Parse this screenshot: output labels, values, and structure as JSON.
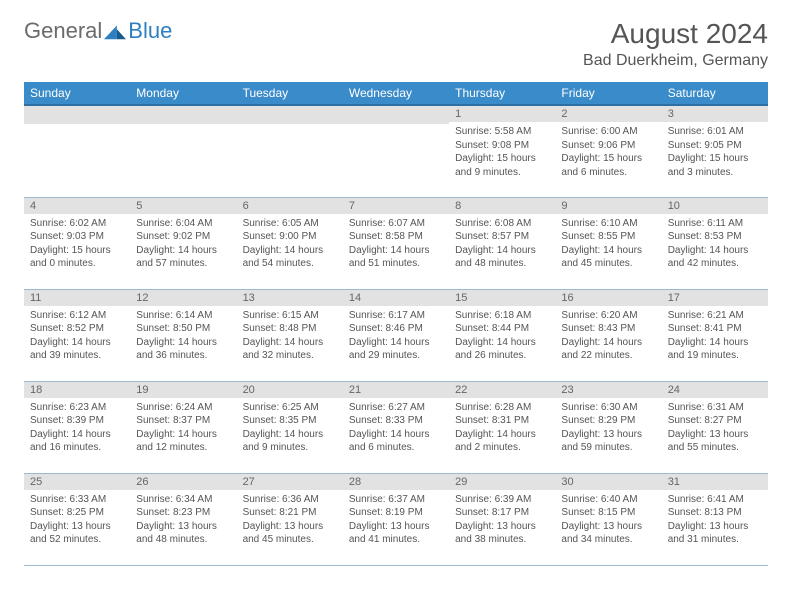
{
  "logo": {
    "general": "General",
    "blue": "Blue"
  },
  "header": {
    "month_title": "August 2024",
    "location": "Bad Duerkheim, Germany"
  },
  "colors": {
    "header_bg": "#3a8bc9",
    "header_border": "#2d6fa3",
    "daynum_bg": "#e2e2e2",
    "cell_border": "#9cb9d2",
    "logo_gray": "#6b6b6b",
    "logo_blue": "#2d7fc1"
  },
  "weekdays": [
    "Sunday",
    "Monday",
    "Tuesday",
    "Wednesday",
    "Thursday",
    "Friday",
    "Saturday"
  ],
  "weeks": [
    [
      null,
      null,
      null,
      null,
      {
        "n": "1",
        "sunrise": "Sunrise: 5:58 AM",
        "sunset": "Sunset: 9:08 PM",
        "daylight1": "Daylight: 15 hours",
        "daylight2": "and 9 minutes."
      },
      {
        "n": "2",
        "sunrise": "Sunrise: 6:00 AM",
        "sunset": "Sunset: 9:06 PM",
        "daylight1": "Daylight: 15 hours",
        "daylight2": "and 6 minutes."
      },
      {
        "n": "3",
        "sunrise": "Sunrise: 6:01 AM",
        "sunset": "Sunset: 9:05 PM",
        "daylight1": "Daylight: 15 hours",
        "daylight2": "and 3 minutes."
      }
    ],
    [
      {
        "n": "4",
        "sunrise": "Sunrise: 6:02 AM",
        "sunset": "Sunset: 9:03 PM",
        "daylight1": "Daylight: 15 hours",
        "daylight2": "and 0 minutes."
      },
      {
        "n": "5",
        "sunrise": "Sunrise: 6:04 AM",
        "sunset": "Sunset: 9:02 PM",
        "daylight1": "Daylight: 14 hours",
        "daylight2": "and 57 minutes."
      },
      {
        "n": "6",
        "sunrise": "Sunrise: 6:05 AM",
        "sunset": "Sunset: 9:00 PM",
        "daylight1": "Daylight: 14 hours",
        "daylight2": "and 54 minutes."
      },
      {
        "n": "7",
        "sunrise": "Sunrise: 6:07 AM",
        "sunset": "Sunset: 8:58 PM",
        "daylight1": "Daylight: 14 hours",
        "daylight2": "and 51 minutes."
      },
      {
        "n": "8",
        "sunrise": "Sunrise: 6:08 AM",
        "sunset": "Sunset: 8:57 PM",
        "daylight1": "Daylight: 14 hours",
        "daylight2": "and 48 minutes."
      },
      {
        "n": "9",
        "sunrise": "Sunrise: 6:10 AM",
        "sunset": "Sunset: 8:55 PM",
        "daylight1": "Daylight: 14 hours",
        "daylight2": "and 45 minutes."
      },
      {
        "n": "10",
        "sunrise": "Sunrise: 6:11 AM",
        "sunset": "Sunset: 8:53 PM",
        "daylight1": "Daylight: 14 hours",
        "daylight2": "and 42 minutes."
      }
    ],
    [
      {
        "n": "11",
        "sunrise": "Sunrise: 6:12 AM",
        "sunset": "Sunset: 8:52 PM",
        "daylight1": "Daylight: 14 hours",
        "daylight2": "and 39 minutes."
      },
      {
        "n": "12",
        "sunrise": "Sunrise: 6:14 AM",
        "sunset": "Sunset: 8:50 PM",
        "daylight1": "Daylight: 14 hours",
        "daylight2": "and 36 minutes."
      },
      {
        "n": "13",
        "sunrise": "Sunrise: 6:15 AM",
        "sunset": "Sunset: 8:48 PM",
        "daylight1": "Daylight: 14 hours",
        "daylight2": "and 32 minutes."
      },
      {
        "n": "14",
        "sunrise": "Sunrise: 6:17 AM",
        "sunset": "Sunset: 8:46 PM",
        "daylight1": "Daylight: 14 hours",
        "daylight2": "and 29 minutes."
      },
      {
        "n": "15",
        "sunrise": "Sunrise: 6:18 AM",
        "sunset": "Sunset: 8:44 PM",
        "daylight1": "Daylight: 14 hours",
        "daylight2": "and 26 minutes."
      },
      {
        "n": "16",
        "sunrise": "Sunrise: 6:20 AM",
        "sunset": "Sunset: 8:43 PM",
        "daylight1": "Daylight: 14 hours",
        "daylight2": "and 22 minutes."
      },
      {
        "n": "17",
        "sunrise": "Sunrise: 6:21 AM",
        "sunset": "Sunset: 8:41 PM",
        "daylight1": "Daylight: 14 hours",
        "daylight2": "and 19 minutes."
      }
    ],
    [
      {
        "n": "18",
        "sunrise": "Sunrise: 6:23 AM",
        "sunset": "Sunset: 8:39 PM",
        "daylight1": "Daylight: 14 hours",
        "daylight2": "and 16 minutes."
      },
      {
        "n": "19",
        "sunrise": "Sunrise: 6:24 AM",
        "sunset": "Sunset: 8:37 PM",
        "daylight1": "Daylight: 14 hours",
        "daylight2": "and 12 minutes."
      },
      {
        "n": "20",
        "sunrise": "Sunrise: 6:25 AM",
        "sunset": "Sunset: 8:35 PM",
        "daylight1": "Daylight: 14 hours",
        "daylight2": "and 9 minutes."
      },
      {
        "n": "21",
        "sunrise": "Sunrise: 6:27 AM",
        "sunset": "Sunset: 8:33 PM",
        "daylight1": "Daylight: 14 hours",
        "daylight2": "and 6 minutes."
      },
      {
        "n": "22",
        "sunrise": "Sunrise: 6:28 AM",
        "sunset": "Sunset: 8:31 PM",
        "daylight1": "Daylight: 14 hours",
        "daylight2": "and 2 minutes."
      },
      {
        "n": "23",
        "sunrise": "Sunrise: 6:30 AM",
        "sunset": "Sunset: 8:29 PM",
        "daylight1": "Daylight: 13 hours",
        "daylight2": "and 59 minutes."
      },
      {
        "n": "24",
        "sunrise": "Sunrise: 6:31 AM",
        "sunset": "Sunset: 8:27 PM",
        "daylight1": "Daylight: 13 hours",
        "daylight2": "and 55 minutes."
      }
    ],
    [
      {
        "n": "25",
        "sunrise": "Sunrise: 6:33 AM",
        "sunset": "Sunset: 8:25 PM",
        "daylight1": "Daylight: 13 hours",
        "daylight2": "and 52 minutes."
      },
      {
        "n": "26",
        "sunrise": "Sunrise: 6:34 AM",
        "sunset": "Sunset: 8:23 PM",
        "daylight1": "Daylight: 13 hours",
        "daylight2": "and 48 minutes."
      },
      {
        "n": "27",
        "sunrise": "Sunrise: 6:36 AM",
        "sunset": "Sunset: 8:21 PM",
        "daylight1": "Daylight: 13 hours",
        "daylight2": "and 45 minutes."
      },
      {
        "n": "28",
        "sunrise": "Sunrise: 6:37 AM",
        "sunset": "Sunset: 8:19 PM",
        "daylight1": "Daylight: 13 hours",
        "daylight2": "and 41 minutes."
      },
      {
        "n": "29",
        "sunrise": "Sunrise: 6:39 AM",
        "sunset": "Sunset: 8:17 PM",
        "daylight1": "Daylight: 13 hours",
        "daylight2": "and 38 minutes."
      },
      {
        "n": "30",
        "sunrise": "Sunrise: 6:40 AM",
        "sunset": "Sunset: 8:15 PM",
        "daylight1": "Daylight: 13 hours",
        "daylight2": "and 34 minutes."
      },
      {
        "n": "31",
        "sunrise": "Sunrise: 6:41 AM",
        "sunset": "Sunset: 8:13 PM",
        "daylight1": "Daylight: 13 hours",
        "daylight2": "and 31 minutes."
      }
    ]
  ]
}
